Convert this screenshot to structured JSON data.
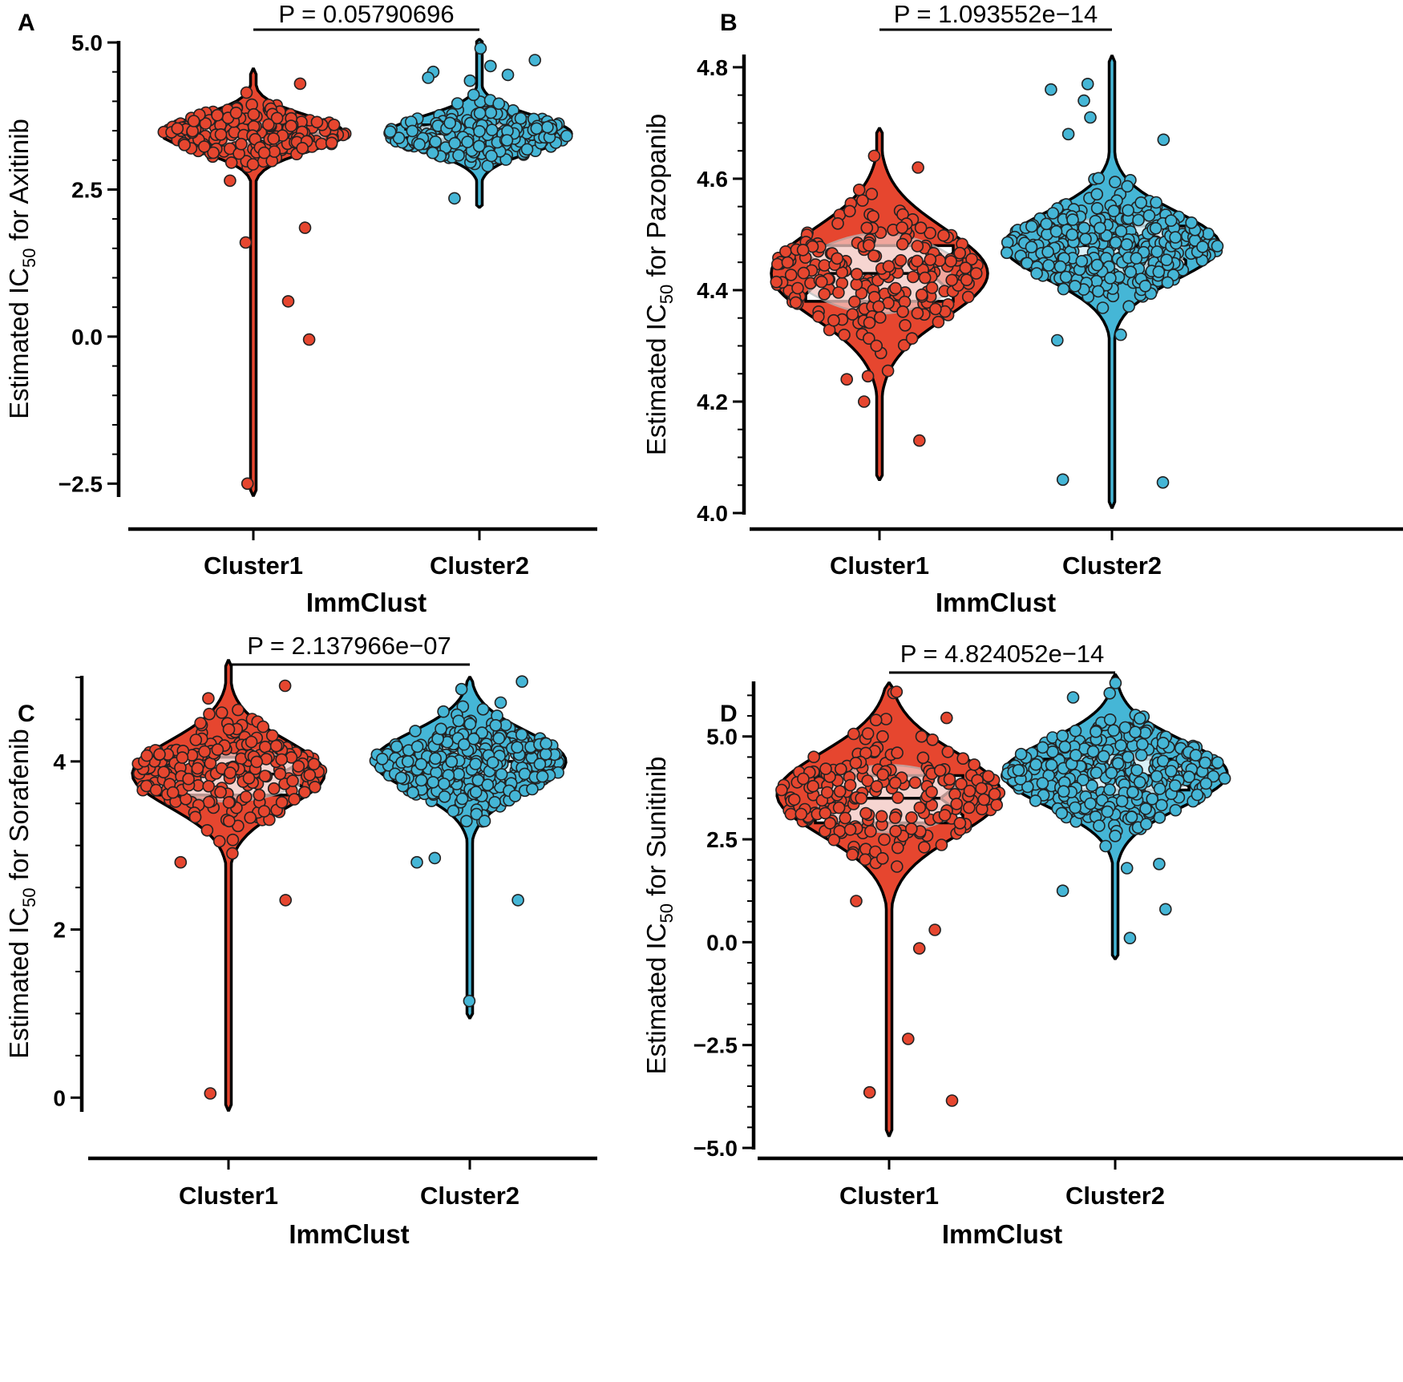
{
  "colors": {
    "cluster1": "#e6462f",
    "cluster2": "#45b6d6",
    "cluster1_light": "#f4c7c2",
    "cluster2_light": "#d4eef6"
  },
  "chart_data": [
    {
      "type": "violin",
      "panel": "A",
      "ylabel": {
        "prefix": "Estimated IC",
        "sub": "50",
        "suffix": "  for Axitinib"
      },
      "xlabel": "ImmClust",
      "categories": [
        "Cluster1",
        "Cluster2"
      ],
      "pvalue": "P = 0.05790696",
      "ylim": [
        -2.7,
        5.0
      ],
      "yticks": [
        5.0,
        2.5,
        0.0,
        -2.5
      ],
      "ytick_labels": [
        "5.0",
        "2.5",
        "0.0",
        "−2.5"
      ],
      "minor_step": 0.5,
      "groups": [
        {
          "name": "Cluster1",
          "min": -2.7,
          "max": 4.55,
          "median": 3.4,
          "q1": 3.28,
          "q3": 3.6,
          "center": 3.45,
          "spread": 0.3,
          "n": 170,
          "outliers": [
            4.3,
            2.65,
            1.85,
            1.6,
            0.6,
            -0.05,
            -2.5
          ]
        },
        {
          "name": "Cluster2",
          "min": 2.2,
          "max": 5.05,
          "median": 3.45,
          "q1": 3.35,
          "q3": 3.6,
          "center": 3.45,
          "spread": 0.3,
          "n": 210,
          "outliers": [
            4.9,
            4.7,
            4.6,
            4.5,
            4.45,
            4.4,
            4.35,
            2.35
          ]
        }
      ]
    },
    {
      "type": "violin",
      "panel": "B",
      "ylabel": {
        "prefix": "Estimated IC",
        "sub": "50",
        "suffix": "  for Pazopanib"
      },
      "xlabel": "ImmClust",
      "categories": [
        "Cluster1",
        "Cluster2"
      ],
      "pvalue": "P = 1.093552e−14",
      "ylim": [
        4.0,
        4.82
      ],
      "yticks": [
        4.8,
        4.6,
        4.4,
        4.2,
        4.0
      ],
      "ytick_labels": [
        "4.8",
        "4.6",
        "4.4",
        "4.2",
        "4.0"
      ],
      "minor_step": 0.05,
      "groups": [
        {
          "name": "Cluster1",
          "min": 4.06,
          "max": 4.69,
          "median": 4.43,
          "q1": 4.38,
          "q3": 4.48,
          "center": 4.43,
          "spread": 0.08,
          "n": 200,
          "outliers": [
            4.62,
            4.58,
            4.24,
            4.2,
            4.13
          ]
        },
        {
          "name": "Cluster2",
          "min": 4.01,
          "max": 4.82,
          "median": 4.48,
          "q1": 4.445,
          "q3": 4.515,
          "center": 4.48,
          "spread": 0.06,
          "n": 330,
          "outliers": [
            4.77,
            4.76,
            4.74,
            4.71,
            4.68,
            4.67,
            4.32,
            4.31,
            4.06,
            4.055
          ]
        }
      ]
    },
    {
      "type": "violin",
      "panel": "C",
      "ylabel": {
        "prefix": "Estimated IC",
        "sub": "50",
        "suffix": "  for Sorafenib"
      },
      "xlabel": "ImmClust",
      "categories": [
        "Cluster1",
        "Cluster2"
      ],
      "pvalue": "P = 2.137966e−07",
      "ylim": [
        -0.15,
        5.0
      ],
      "yticks": [
        4,
        2,
        0
      ],
      "ytick_labels": [
        "4",
        "2",
        "0"
      ],
      "minor_step": 0.5,
      "groups": [
        {
          "name": "Cluster1",
          "min": -0.15,
          "max": 5.2,
          "median": 3.85,
          "q1": 3.6,
          "q3": 4.05,
          "center": 3.85,
          "spread": 0.4,
          "n": 220,
          "outliers": [
            4.9,
            4.75,
            2.8,
            2.35,
            0.05
          ]
        },
        {
          "name": "Cluster2",
          "min": 0.95,
          "max": 5.0,
          "median": 4.0,
          "q1": 3.8,
          "q3": 4.15,
          "center": 4.0,
          "spread": 0.35,
          "n": 330,
          "outliers": [
            4.95,
            4.7,
            2.85,
            2.8,
            2.35,
            1.15
          ]
        }
      ]
    },
    {
      "type": "violin",
      "panel": "D",
      "ylabel": {
        "prefix": "Estimated IC",
        "sub": "50",
        "suffix": "  for Sunitinib"
      },
      "xlabel": "ImmClust",
      "categories": [
        "Cluster1",
        "Cluster2"
      ],
      "pvalue": "P = 4.824052e−14",
      "ylim": [
        -5.0,
        6.3
      ],
      "yticks": [
        5.0,
        2.5,
        0.0,
        -2.5,
        -5.0
      ],
      "ytick_labels": [
        "5.0",
        "2.5",
        "0.0",
        "−2.5",
        "−5.0"
      ],
      "minor_step": 0.5,
      "groups": [
        {
          "name": "Cluster1",
          "min": -4.7,
          "max": 6.3,
          "median": 3.5,
          "q1": 2.9,
          "q3": 4.05,
          "center": 3.6,
          "spread": 1.0,
          "n": 190,
          "outliers": [
            5.45,
            5.0,
            1.0,
            0.3,
            -0.15,
            -2.35,
            -3.65,
            -3.85
          ]
        },
        {
          "name": "Cluster2",
          "min": -0.4,
          "max": 6.5,
          "median": 4.05,
          "q1": 3.7,
          "q3": 4.45,
          "center": 4.1,
          "spread": 0.8,
          "n": 330,
          "outliers": [
            6.3,
            6.05,
            5.95,
            1.9,
            1.8,
            1.25,
            0.8,
            0.1
          ]
        }
      ]
    }
  ]
}
